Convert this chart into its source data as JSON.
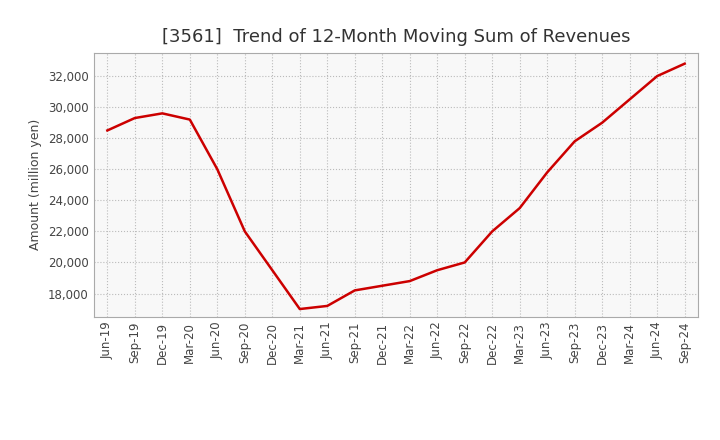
{
  "title": "[3561]  Trend of 12-Month Moving Sum of Revenues",
  "ylabel": "Amount (million yen)",
  "line_color": "#CC0000",
  "background_color": "#FFFFFF",
  "plot_bg_color": "#F8F8F8",
  "grid_color": "#BBBBBB",
  "title_color": "#333333",
  "x_labels": [
    "Jun-19",
    "Sep-19",
    "Dec-19",
    "Mar-20",
    "Jun-20",
    "Sep-20",
    "Dec-20",
    "Mar-21",
    "Jun-21",
    "Sep-21",
    "Dec-21",
    "Mar-22",
    "Jun-22",
    "Sep-22",
    "Dec-22",
    "Mar-23",
    "Jun-23",
    "Sep-23",
    "Dec-23",
    "Mar-24",
    "Jun-24",
    "Sep-24"
  ],
  "y_values": [
    28500,
    29300,
    29600,
    29200,
    26000,
    22000,
    19500,
    17000,
    17200,
    18200,
    18500,
    18800,
    19500,
    20000,
    22000,
    23500,
    25800,
    27800,
    29000,
    30500,
    32000,
    32800
  ],
  "ylim": [
    16500,
    33500
  ],
  "yticks": [
    18000,
    20000,
    22000,
    24000,
    26000,
    28000,
    30000,
    32000
  ],
  "title_fontsize": 13,
  "label_fontsize": 9,
  "tick_fontsize": 8.5
}
